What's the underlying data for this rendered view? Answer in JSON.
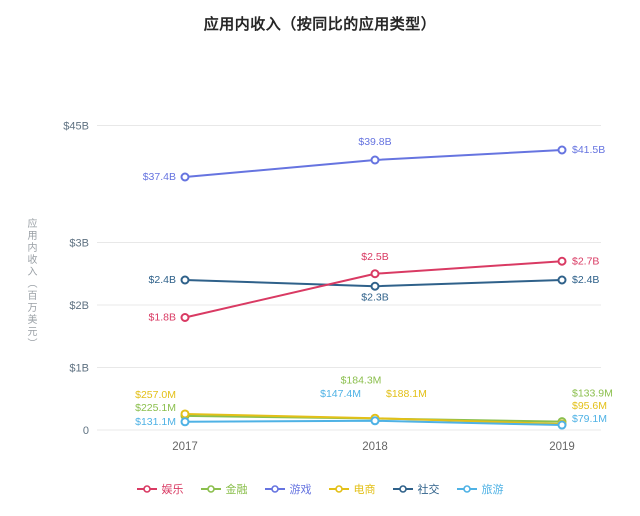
{
  "chart_data": {
    "type": "line",
    "title": "应用内收入（按同比的应用类型）",
    "ylabel": "应用内收入（百万美元）",
    "categories": [
      "2017",
      "2018",
      "2019"
    ],
    "y_ticks": [
      {
        "value": 0,
        "label": "0"
      },
      {
        "value": 1000,
        "label": "$1B"
      },
      {
        "value": 2000,
        "label": "$2B"
      },
      {
        "value": 3000,
        "label": "$3B"
      },
      {
        "value": 45000,
        "label": "$45B"
      }
    ],
    "grid": true,
    "legend_position": "bottom",
    "series": [
      {
        "name": "娱乐",
        "color": "#d93a63",
        "values_musd": [
          1800,
          2500,
          2700
        ],
        "labels": [
          "$1.8B",
          "$2.5B",
          "$2.7B"
        ]
      },
      {
        "name": "金融",
        "color": "#8bbf4d",
        "values_musd": [
          225.1,
          184.3,
          133.9
        ],
        "labels": [
          "$225.1M",
          "$184.3M",
          "$133.9M"
        ]
      },
      {
        "name": "游戏",
        "color": "#6674e0",
        "values_musd": [
          37400,
          39800,
          41500
        ],
        "labels": [
          "$37.4B",
          "$39.8B",
          "$41.5B"
        ]
      },
      {
        "name": "电商",
        "color": "#e3c018",
        "values_musd": [
          257.0,
          188.1,
          95.6
        ],
        "labels": [
          "$257.0M",
          "$188.1M",
          "$95.6M"
        ]
      },
      {
        "name": "社交",
        "color": "#2f618a",
        "values_musd": [
          2400,
          2300,
          2400
        ],
        "labels": [
          "$2.4B",
          "$2.3B",
          "$2.4B"
        ]
      },
      {
        "name": "旅游",
        "color": "#4fb2e5",
        "values_musd": [
          131.1,
          147.4,
          79.1
        ],
        "labels": [
          "$131.1M",
          "$147.4M",
          "$79.1M"
        ]
      }
    ]
  }
}
